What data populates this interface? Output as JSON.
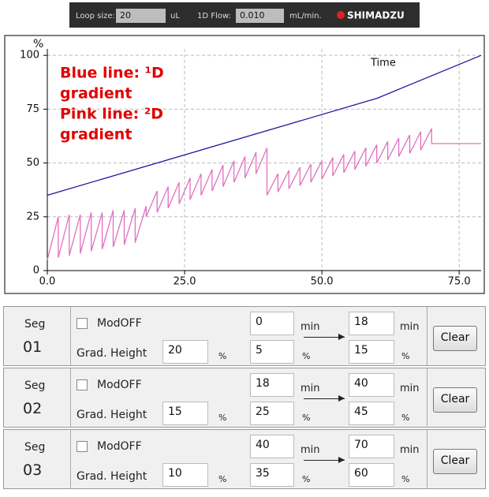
{
  "toolbar": {
    "loop_size_label": "Loop size:",
    "loop_size_value": "20",
    "loop_size_unit": "uL",
    "flow_label": "1D Flow:",
    "flow_value": "0.010",
    "flow_unit": "mL/min.",
    "brand": "SHIMADZU"
  },
  "chart_data": {
    "type": "line",
    "y_label": "%",
    "x_label": "Time",
    "annotations": [
      "Blue line: ¹D",
      "gradient",
      "Pink line: ²D",
      "gradient"
    ],
    "xlim": [
      0,
      79
    ],
    "ylim": [
      0,
      103
    ],
    "xticks": [
      {
        "value": 0,
        "label": "0.0"
      },
      {
        "value": 25,
        "label": "25.0"
      },
      {
        "value": 50,
        "label": "50.0"
      },
      {
        "value": 75,
        "label": "75.0"
      }
    ],
    "yticks": [
      0,
      25,
      50,
      75,
      100
    ],
    "grid": true,
    "series": [
      {
        "color": "#1a1a9c",
        "x": [
          0,
          60,
          79
        ],
        "values": [
          35,
          80,
          100
        ]
      },
      {
        "color": "#e070c0",
        "x": [
          0,
          2,
          2,
          4,
          4,
          6,
          6,
          8,
          8,
          10,
          10,
          12,
          12,
          14,
          14,
          16,
          16,
          18,
          18,
          20,
          20,
          22,
          22,
          24,
          24,
          26,
          26,
          28,
          28,
          30,
          30,
          32,
          32,
          34,
          34,
          36,
          36,
          38,
          38,
          40,
          40,
          42,
          42,
          44,
          44,
          46,
          46,
          48,
          48,
          50,
          50,
          52,
          52,
          54,
          54,
          56,
          56,
          58,
          58,
          60,
          60,
          62,
          62,
          64,
          64,
          66,
          66,
          68,
          68,
          70,
          70,
          79
        ],
        "values": [
          5,
          25,
          6,
          26,
          7,
          26,
          8,
          27,
          9,
          27,
          10,
          28,
          11,
          28,
          12,
          29,
          13,
          30,
          25,
          37,
          27,
          39,
          29,
          41,
          31,
          43,
          33,
          45,
          35,
          47,
          37,
          49,
          39,
          51,
          41,
          53,
          43,
          55,
          45,
          57,
          35,
          45,
          36.5,
          46.5,
          38,
          48,
          39.5,
          49.5,
          41,
          51,
          42.5,
          52.5,
          44,
          54,
          45.5,
          55.5,
          47,
          57,
          48.5,
          58.5,
          50,
          60,
          51.5,
          61.5,
          53,
          63,
          54.5,
          64.5,
          56,
          66,
          59,
          59
        ]
      }
    ]
  },
  "table": {
    "labels": {
      "seg": "Seg",
      "mod": "ModOFF",
      "grad": "Grad. Height",
      "pct": "%",
      "min": "min",
      "clear": "Clear"
    },
    "rows": [
      {
        "seg": "01",
        "height": "20",
        "start_time": "0",
        "end_time": "18",
        "start_conc": "5",
        "end_conc": "15"
      },
      {
        "seg": "02",
        "height": "15",
        "start_time": "18",
        "end_time": "40",
        "start_conc": "25",
        "end_conc": "45"
      },
      {
        "seg": "03",
        "height": "10",
        "start_time": "40",
        "end_time": "70",
        "start_conc": "35",
        "end_conc": "60"
      }
    ]
  }
}
